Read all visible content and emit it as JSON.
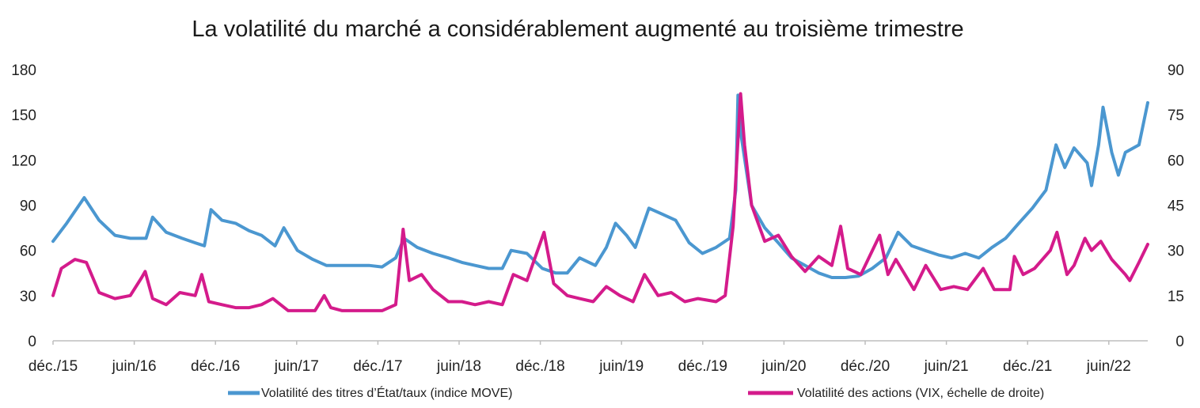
{
  "chart_data": {
    "type": "line",
    "title": "La volatilité du marché a considérablement augmenté au troisième trimestre",
    "xlabel": "",
    "ylabel": "",
    "ylabel_right": "",
    "x_tick_labels": [
      "déc./15",
      "juin/16",
      "déc./16",
      "juin/17",
      "déc./17",
      "juin/18",
      "déc./18",
      "juin/19",
      "déc./19",
      "juin/20",
      "déc./20",
      "juin/21",
      "déc./21",
      "juin/22"
    ],
    "x_range": [
      "2015-12-01",
      "2022-09-30"
    ],
    "ylim_left": [
      0,
      180
    ],
    "yticks_left": [
      0,
      30,
      60,
      90,
      120,
      150,
      180
    ],
    "ylim_right": [
      0,
      90
    ],
    "yticks_right": [
      0,
      15,
      30,
      45,
      60,
      75,
      90
    ],
    "grid": false,
    "legend_position": "bottom",
    "series": [
      {
        "name": "Volatilité des titres d’État/taux (indice MOVE)",
        "axis": "left",
        "color": "#4b97d0",
        "points": [
          [
            "2015-12-01",
            66
          ],
          [
            "2016-01-01",
            78
          ],
          [
            "2016-02-10",
            95
          ],
          [
            "2016-03-15",
            80
          ],
          [
            "2016-04-20",
            70
          ],
          [
            "2016-05-25",
            68
          ],
          [
            "2016-06-30",
            68
          ],
          [
            "2016-07-15",
            82
          ],
          [
            "2016-08-15",
            72
          ],
          [
            "2016-09-20",
            68
          ],
          [
            "2016-10-20",
            65
          ],
          [
            "2016-11-10",
            63
          ],
          [
            "2016-11-25",
            87
          ],
          [
            "2016-12-20",
            80
          ],
          [
            "2017-01-20",
            78
          ],
          [
            "2017-02-20",
            73
          ],
          [
            "2017-03-20",
            70
          ],
          [
            "2017-04-20",
            63
          ],
          [
            "2017-05-10",
            75
          ],
          [
            "2017-06-10",
            60
          ],
          [
            "2017-07-15",
            54
          ],
          [
            "2017-08-15",
            50
          ],
          [
            "2017-09-20",
            50
          ],
          [
            "2017-10-20",
            50
          ],
          [
            "2017-11-20",
            50
          ],
          [
            "2017-12-20",
            49
          ],
          [
            "2018-01-20",
            55
          ],
          [
            "2018-02-08",
            68
          ],
          [
            "2018-03-10",
            62
          ],
          [
            "2018-04-15",
            58
          ],
          [
            "2018-05-20",
            55
          ],
          [
            "2018-06-20",
            52
          ],
          [
            "2018-07-20",
            50
          ],
          [
            "2018-08-20",
            48
          ],
          [
            "2018-09-20",
            48
          ],
          [
            "2018-10-10",
            60
          ],
          [
            "2018-11-15",
            58
          ],
          [
            "2018-12-20",
            48
          ],
          [
            "2019-01-20",
            45
          ],
          [
            "2019-02-15",
            45
          ],
          [
            "2019-03-15",
            55
          ],
          [
            "2019-04-20",
            50
          ],
          [
            "2019-05-15",
            62
          ],
          [
            "2019-06-05",
            78
          ],
          [
            "2019-06-30",
            70
          ],
          [
            "2019-07-20",
            62
          ],
          [
            "2019-08-20",
            88
          ],
          [
            "2019-09-20",
            84
          ],
          [
            "2019-10-20",
            80
          ],
          [
            "2019-11-20",
            65
          ],
          [
            "2019-12-20",
            58
          ],
          [
            "2020-01-20",
            62
          ],
          [
            "2020-02-20",
            68
          ],
          [
            "2020-03-05",
            100
          ],
          [
            "2020-03-10",
            163
          ],
          [
            "2020-03-18",
            135
          ],
          [
            "2020-04-10",
            90
          ],
          [
            "2020-05-10",
            75
          ],
          [
            "2020-06-10",
            65
          ],
          [
            "2020-07-10",
            55
          ],
          [
            "2020-08-10",
            50
          ],
          [
            "2020-09-10",
            45
          ],
          [
            "2020-10-10",
            42
          ],
          [
            "2020-11-10",
            42
          ],
          [
            "2020-12-10",
            43
          ],
          [
            "2021-01-10",
            48
          ],
          [
            "2021-02-10",
            55
          ],
          [
            "2021-03-10",
            72
          ],
          [
            "2021-04-10",
            63
          ],
          [
            "2021-05-10",
            60
          ],
          [
            "2021-06-10",
            57
          ],
          [
            "2021-07-10",
            55
          ],
          [
            "2021-08-10",
            58
          ],
          [
            "2021-09-10",
            55
          ],
          [
            "2021-10-10",
            62
          ],
          [
            "2021-11-10",
            68
          ],
          [
            "2021-12-10",
            78
          ],
          [
            "2022-01-10",
            88
          ],
          [
            "2022-02-10",
            100
          ],
          [
            "2022-03-05",
            130
          ],
          [
            "2022-03-25",
            115
          ],
          [
            "2022-04-15",
            128
          ],
          [
            "2022-05-15",
            118
          ],
          [
            "2022-05-25",
            103
          ],
          [
            "2022-06-10",
            130
          ],
          [
            "2022-06-20",
            155
          ],
          [
            "2022-07-10",
            125
          ],
          [
            "2022-07-25",
            110
          ],
          [
            "2022-08-10",
            125
          ],
          [
            "2022-09-10",
            130
          ],
          [
            "2022-09-30",
            158
          ]
        ]
      },
      {
        "name": "Volatilité des actions (VIX, échelle de droite)",
        "axis": "right",
        "color": "#d41b8b",
        "points": [
          [
            "2015-12-01",
            15
          ],
          [
            "2015-12-20",
            24
          ],
          [
            "2016-01-20",
            27
          ],
          [
            "2016-02-15",
            26
          ],
          [
            "2016-03-15",
            16
          ],
          [
            "2016-04-20",
            14
          ],
          [
            "2016-05-25",
            15
          ],
          [
            "2016-06-20",
            21
          ],
          [
            "2016-06-28",
            23
          ],
          [
            "2016-07-15",
            14
          ],
          [
            "2016-08-15",
            12
          ],
          [
            "2016-09-15",
            16
          ],
          [
            "2016-10-20",
            15
          ],
          [
            "2016-11-04",
            22
          ],
          [
            "2016-11-20",
            13
          ],
          [
            "2016-12-20",
            12
          ],
          [
            "2017-01-20",
            11
          ],
          [
            "2017-02-20",
            11
          ],
          [
            "2017-03-20",
            12
          ],
          [
            "2017-04-15",
            14
          ],
          [
            "2017-05-20",
            10
          ],
          [
            "2017-06-20",
            10
          ],
          [
            "2017-07-20",
            10
          ],
          [
            "2017-08-10",
            15
          ],
          [
            "2017-08-25",
            11
          ],
          [
            "2017-09-20",
            10
          ],
          [
            "2017-10-20",
            10
          ],
          [
            "2017-11-20",
            10
          ],
          [
            "2017-12-20",
            10
          ],
          [
            "2018-01-20",
            12
          ],
          [
            "2018-02-06",
            37
          ],
          [
            "2018-02-20",
            20
          ],
          [
            "2018-03-20",
            22
          ],
          [
            "2018-04-15",
            17
          ],
          [
            "2018-05-20",
            13
          ],
          [
            "2018-06-20",
            13
          ],
          [
            "2018-07-20",
            12
          ],
          [
            "2018-08-20",
            13
          ],
          [
            "2018-09-20",
            12
          ],
          [
            "2018-10-15",
            22
          ],
          [
            "2018-11-15",
            20
          ],
          [
            "2018-12-24",
            36
          ],
          [
            "2019-01-15",
            19
          ],
          [
            "2019-02-15",
            15
          ],
          [
            "2019-03-15",
            14
          ],
          [
            "2019-04-15",
            13
          ],
          [
            "2019-05-15",
            18
          ],
          [
            "2019-06-15",
            15
          ],
          [
            "2019-07-15",
            13
          ],
          [
            "2019-08-10",
            22
          ],
          [
            "2019-09-10",
            15
          ],
          [
            "2019-10-10",
            16
          ],
          [
            "2019-11-10",
            13
          ],
          [
            "2019-12-10",
            14
          ],
          [
            "2020-01-20",
            13
          ],
          [
            "2020-02-10",
            15
          ],
          [
            "2020-02-28",
            38
          ],
          [
            "2020-03-16",
            82
          ],
          [
            "2020-03-25",
            65
          ],
          [
            "2020-04-10",
            45
          ],
          [
            "2020-05-10",
            33
          ],
          [
            "2020-06-10",
            35
          ],
          [
            "2020-07-10",
            28
          ],
          [
            "2020-08-10",
            23
          ],
          [
            "2020-09-10",
            28
          ],
          [
            "2020-10-10",
            25
          ],
          [
            "2020-10-30",
            38
          ],
          [
            "2020-11-15",
            24
          ],
          [
            "2020-12-15",
            22
          ],
          [
            "2021-01-27",
            35
          ],
          [
            "2021-02-15",
            22
          ],
          [
            "2021-03-05",
            27
          ],
          [
            "2021-04-15",
            17
          ],
          [
            "2021-05-12",
            25
          ],
          [
            "2021-06-15",
            17
          ],
          [
            "2021-07-15",
            18
          ],
          [
            "2021-08-15",
            17
          ],
          [
            "2021-09-20",
            24
          ],
          [
            "2021-10-15",
            17
          ],
          [
            "2021-11-20",
            17
          ],
          [
            "2021-11-30",
            28
          ],
          [
            "2021-12-20",
            22
          ],
          [
            "2022-01-15",
            24
          ],
          [
            "2022-02-20",
            30
          ],
          [
            "2022-03-07",
            36
          ],
          [
            "2022-03-30",
            22
          ],
          [
            "2022-04-15",
            25
          ],
          [
            "2022-05-10",
            34
          ],
          [
            "2022-05-25",
            30
          ],
          [
            "2022-06-15",
            33
          ],
          [
            "2022-07-10",
            27
          ],
          [
            "2022-08-10",
            22
          ],
          [
            "2022-08-20",
            20
          ],
          [
            "2022-09-10",
            26
          ],
          [
            "2022-09-30",
            32
          ]
        ]
      }
    ]
  }
}
